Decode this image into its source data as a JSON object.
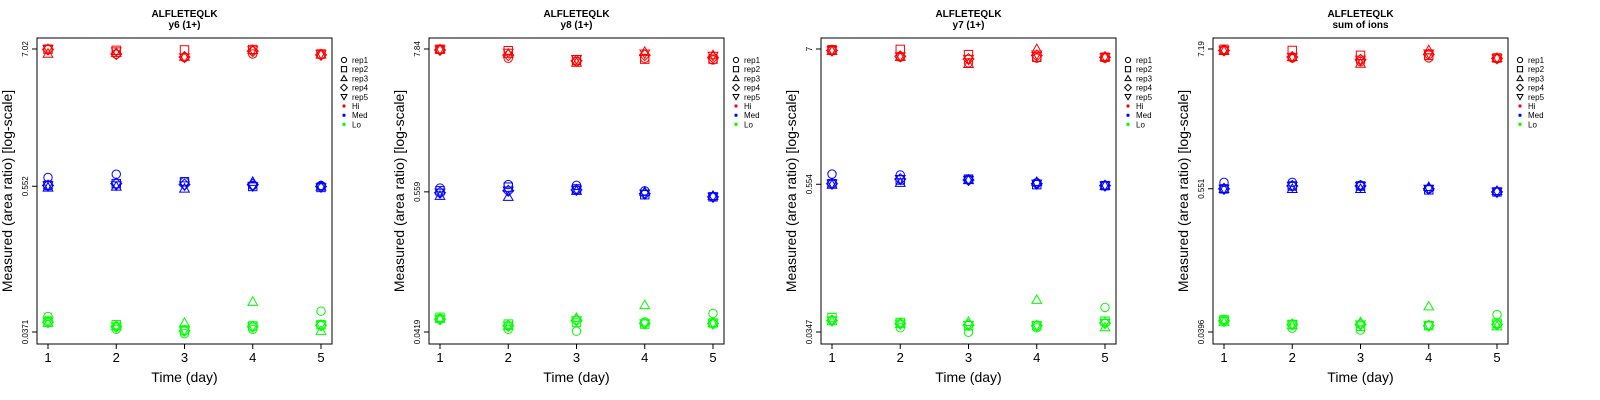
{
  "colors": {
    "Hi": "#ff0000",
    "Med": "#0000ff",
    "Lo": "#00ff00",
    "axis": "#000000"
  },
  "legend": {
    "entries": [
      {
        "label": "rep1",
        "symbol": "circle"
      },
      {
        "label": "rep2",
        "symbol": "square"
      },
      {
        "label": "rep3",
        "symbol": "triangle-up"
      },
      {
        "label": "rep4",
        "symbol": "diamond"
      },
      {
        "label": "rep5",
        "symbol": "triangle-down"
      },
      {
        "label": "Hi",
        "symbol": "dot",
        "color": "Hi"
      },
      {
        "label": "Med",
        "symbol": "dot",
        "color": "Med"
      },
      {
        "label": "Lo",
        "symbol": "dot",
        "color": "Lo"
      }
    ],
    "placement": "right-outside"
  },
  "chart_data": [
    {
      "type": "scatter",
      "title": "ALFLETEQLK",
      "subtitle": "y6 (1+)",
      "xlabel": "Time (day)",
      "ylabel": "Measured (area ratio) [log-scale]",
      "y_scale": "log",
      "ylim": [
        0.0371,
        7.02
      ],
      "x_ticks": [
        1,
        2,
        3,
        4,
        5
      ],
      "y_ticks": [
        0.0371,
        0.552,
        7.02
      ],
      "y_tick_labels": [
        "0.0371",
        "0.552",
        "7.02"
      ],
      "groups": [
        "Hi",
        "Med",
        "Lo"
      ],
      "replicates": [
        "rep1",
        "rep2",
        "rep3",
        "rep4",
        "rep5"
      ],
      "points": {
        "Hi": {
          "rep1": [
            7.0,
            6.38,
            6.0,
            6.4,
            6.3
          ],
          "rep2": [
            7.0,
            6.85,
            6.9,
            6.95,
            6.4
          ],
          "rep3": [
            6.45,
            6.55,
            6.1,
            6.9,
            6.35
          ],
          "rep4": [
            6.95,
            6.4,
            6.05,
            6.75,
            6.3
          ],
          "rep5": [
            7.0,
            6.7,
            6.0,
            6.85,
            6.4
          ]
        },
        "Med": {
          "rep1": [
            0.65,
            0.69,
            0.6,
            0.56,
            0.56
          ],
          "rep2": [
            0.56,
            0.58,
            0.6,
            0.55,
            0.54
          ],
          "rep3": [
            0.54,
            0.55,
            0.53,
            0.6,
            0.55
          ],
          "rep4": [
            0.56,
            0.58,
            0.57,
            0.57,
            0.55
          ],
          "rep5": [
            0.56,
            0.56,
            0.56,
            0.55,
            0.54
          ]
        },
        "Lo": {
          "rep1": [
            0.0495,
            0.039,
            0.036,
            0.039,
            0.0545
          ],
          "rep2": [
            0.0455,
            0.0425,
            0.0385,
            0.0415,
            0.0425
          ],
          "rep3": [
            0.044,
            0.0415,
            0.044,
            0.065,
            0.038
          ],
          "rep4": [
            0.0445,
            0.041,
            0.038,
            0.041,
            0.042
          ],
          "rep5": [
            0.045,
            0.041,
            0.038,
            0.041,
            0.042
          ]
        }
      }
    },
    {
      "type": "scatter",
      "title": "ALFLETEQLK",
      "subtitle": "y8 (1+)",
      "xlabel": "Time (day)",
      "ylabel": "Measured (area ratio) [log-scale]",
      "y_scale": "log",
      "ylim": [
        0.0419,
        7.84
      ],
      "x_ticks": [
        1,
        2,
        3,
        4,
        5
      ],
      "y_ticks": [
        0.0419,
        0.559,
        7.84
      ],
      "y_tick_labels": [
        "0.0419",
        "0.559",
        "7.84"
      ],
      "groups": [
        "Hi",
        "Med",
        "Lo"
      ],
      "replicates": [
        "rep1",
        "rep2",
        "rep3",
        "rep4",
        "rep5"
      ],
      "points": {
        "Hi": {
          "rep1": [
            7.8,
            6.6,
            6.2,
            6.6,
            6.4
          ],
          "rep2": [
            7.8,
            7.6,
            6.4,
            6.5,
            6.5
          ],
          "rep3": [
            7.8,
            7.2,
            6.1,
            7.45,
            7.0
          ],
          "rep4": [
            7.7,
            7.0,
            6.3,
            7.0,
            6.7
          ],
          "rep5": [
            7.75,
            7.3,
            6.5,
            7.2,
            6.9
          ]
        },
        "Med": {
          "rep1": [
            0.6,
            0.64,
            0.63,
            0.57,
            0.51
          ],
          "rep2": [
            0.57,
            0.61,
            0.59,
            0.53,
            0.51
          ],
          "rep3": [
            0.52,
            0.51,
            0.57,
            0.56,
            0.52
          ],
          "rep4": [
            0.55,
            0.57,
            0.58,
            0.54,
            0.51
          ],
          "rep5": [
            0.55,
            0.57,
            0.58,
            0.54,
            0.51
          ]
        },
        "Lo": {
          "rep1": [
            0.054,
            0.044,
            0.0425,
            0.0505,
            0.059
          ],
          "rep2": [
            0.055,
            0.0485,
            0.05,
            0.0485,
            0.0495
          ],
          "rep3": [
            0.0535,
            0.047,
            0.0545,
            0.069,
            0.0495
          ],
          "rep4": [
            0.053,
            0.047,
            0.052,
            0.049,
            0.049
          ],
          "rep5": [
            0.053,
            0.047,
            0.052,
            0.049,
            0.049
          ]
        }
      }
    },
    {
      "type": "scatter",
      "title": "ALFLETEQLK",
      "subtitle": "y7 (1+)",
      "xlabel": "Time (day)",
      "ylabel": "Measured (area ratio) [log-scale]",
      "y_scale": "log",
      "ylim": [
        0.0347,
        7.0
      ],
      "x_ticks": [
        1,
        2,
        3,
        4,
        5
      ],
      "y_ticks": [
        0.0347,
        0.554,
        7.0
      ],
      "y_tick_labels": [
        "0.0347",
        "0.554",
        "7"
      ],
      "groups": [
        "Hi",
        "Med",
        "Lo"
      ],
      "replicates": [
        "rep1",
        "rep2",
        "rep3",
        "rep4",
        "rep5"
      ],
      "points": {
        "Hi": {
          "rep1": [
            6.9,
            6.0,
            5.4,
            5.9,
            5.9
          ],
          "rep2": [
            6.9,
            6.95,
            6.3,
            6.0,
            6.0
          ],
          "rep3": [
            6.75,
            6.05,
            5.3,
            7.0,
            6.05
          ],
          "rep4": [
            6.8,
            6.1,
            5.8,
            6.2,
            6.0
          ],
          "rep5": [
            6.85,
            6.1,
            5.8,
            6.3,
            6.0
          ]
        },
        "Med": {
          "rep1": [
            0.67,
            0.66,
            0.61,
            0.57,
            0.54
          ],
          "rep2": [
            0.56,
            0.6,
            0.61,
            0.55,
            0.54
          ],
          "rep3": [
            0.55,
            0.57,
            0.6,
            0.58,
            0.54
          ],
          "rep4": [
            0.56,
            0.61,
            0.6,
            0.56,
            0.54
          ],
          "rep5": [
            0.56,
            0.61,
            0.6,
            0.56,
            0.54
          ]
        },
        "Lo": {
          "rep1": [
            0.0435,
            0.0375,
            0.0345,
            0.0375,
            0.055
          ],
          "rep2": [
            0.0455,
            0.0415,
            0.039,
            0.039,
            0.0425
          ],
          "rep3": [
            0.0425,
            0.0405,
            0.042,
            0.0635,
            0.038
          ],
          "rep4": [
            0.043,
            0.0405,
            0.0395,
            0.039,
            0.041
          ],
          "rep5": [
            0.043,
            0.0405,
            0.0395,
            0.039,
            0.041
          ]
        }
      }
    },
    {
      "type": "scatter",
      "title": "ALFLETEQLK",
      "subtitle": "sum of ions",
      "xlabel": "Time (day)",
      "ylabel": "Measured (area ratio) [log-scale]",
      "y_scale": "log",
      "ylim": [
        0.0396,
        7.19
      ],
      "x_ticks": [
        1,
        2,
        3,
        4,
        5
      ],
      "y_ticks": [
        0.0396,
        0.551,
        7.19
      ],
      "y_tick_labels": [
        "0.0396",
        "0.551",
        "7.19"
      ],
      "groups": [
        "Hi",
        "Med",
        "Lo"
      ],
      "replicates": [
        "rep1",
        "rep2",
        "rep3",
        "rep4",
        "rep5"
      ],
      "points": {
        "Hi": {
          "rep1": [
            7.1,
            6.1,
            5.7,
            6.1,
            6.0
          ],
          "rep2": [
            7.15,
            7.0,
            6.4,
            6.4,
            6.1
          ],
          "rep3": [
            6.95,
            6.2,
            5.5,
            7.05,
            6.1
          ],
          "rep4": [
            7.0,
            6.2,
            5.9,
            6.5,
            6.05
          ],
          "rep5": [
            7.0,
            6.2,
            5.9,
            6.6,
            6.05
          ]
        },
        "Med": {
          "rep1": [
            0.62,
            0.62,
            0.59,
            0.55,
            0.52
          ],
          "rep2": [
            0.55,
            0.58,
            0.58,
            0.54,
            0.52
          ],
          "rep3": [
            0.55,
            0.55,
            0.55,
            0.57,
            0.53
          ],
          "rep4": [
            0.55,
            0.58,
            0.58,
            0.55,
            0.52
          ],
          "rep5": [
            0.55,
            0.58,
            0.58,
            0.55,
            0.52
          ]
        },
        "Lo": {
          "rep1": [
            0.05,
            0.0425,
            0.041,
            0.0445,
            0.0545
          ],
          "rep2": [
            0.0495,
            0.0455,
            0.044,
            0.0445,
            0.0465
          ],
          "rep3": [
            0.0475,
            0.045,
            0.0475,
            0.0635,
            0.044
          ],
          "rep4": [
            0.0485,
            0.0455,
            0.0455,
            0.0445,
            0.0455
          ],
          "rep5": [
            0.0485,
            0.0455,
            0.0455,
            0.0445,
            0.0455
          ]
        }
      }
    }
  ]
}
